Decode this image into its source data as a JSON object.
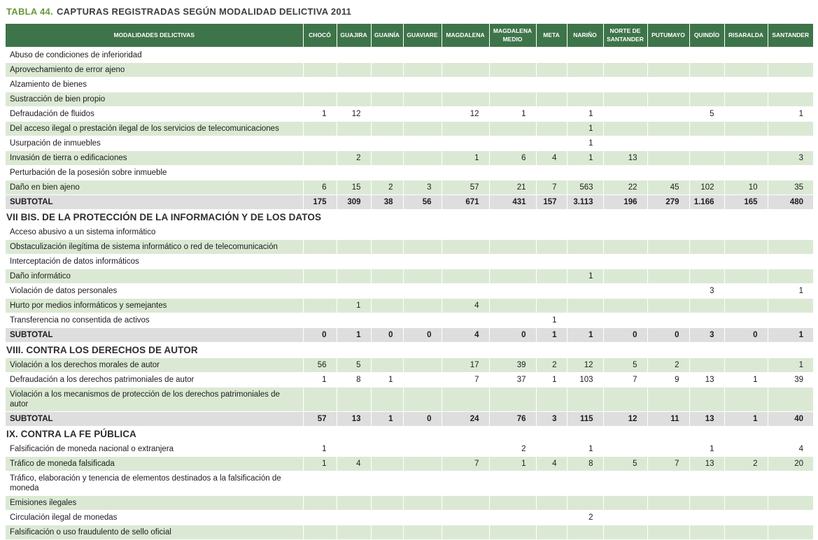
{
  "title": {
    "prefix": "TABLA 44.",
    "text": "CAPTURAS REGISTRADAS SEGÚN MODALIDAD DELICTIVA 2011"
  },
  "colors": {
    "header_bg": "#3e7449",
    "row_alt_bg": "#dbe9d4",
    "subtotal_bg": "#dedede",
    "title_accent": "#69993a"
  },
  "table": {
    "first_column_header": "MODALIDADES DELICTIVAS",
    "columns": [
      "CHOCÓ",
      "GUAJIRA",
      "GUAINÍA",
      "GUAVIARE",
      "MAGDALENA",
      "MAGDALENA MEDIO",
      "META",
      "NARIÑO",
      "NORTE DE SANTANDER",
      "PUTUMAYO",
      "QUINDÍO",
      "RISARALDA",
      "SANTANDER"
    ],
    "sections": [
      {
        "header": null,
        "rows": [
          {
            "label": "Abuso de condiciones de inferioridad",
            "values": [
              "",
              "",
              "",
              "",
              "",
              "",
              "",
              "",
              "",
              "",
              "",
              "",
              ""
            ]
          },
          {
            "label": "Aprovechamiento de error ajeno",
            "values": [
              "",
              "",
              "",
              "",
              "",
              "",
              "",
              "",
              "",
              "",
              "",
              "",
              ""
            ]
          },
          {
            "label": "Alzamiento de bienes",
            "values": [
              "",
              "",
              "",
              "",
              "",
              "",
              "",
              "",
              "",
              "",
              "",
              "",
              ""
            ]
          },
          {
            "label": "Sustracción de bien propio",
            "values": [
              "",
              "",
              "",
              "",
              "",
              "",
              "",
              "",
              "",
              "",
              "",
              "",
              ""
            ]
          },
          {
            "label": "Defraudación de fluidos",
            "values": [
              "1",
              "12",
              "",
              "",
              "12",
              "1",
              "",
              "1",
              "",
              "",
              "5",
              "",
              "1"
            ]
          },
          {
            "label": "Del acceso ilegal o prestación ilegal de los servicios de telecomunicaciones",
            "values": [
              "",
              "",
              "",
              "",
              "",
              "",
              "",
              "1",
              "",
              "",
              "",
              "",
              ""
            ]
          },
          {
            "label": "Usurpación de inmuebles",
            "values": [
              "",
              "",
              "",
              "",
              "",
              "",
              "",
              "1",
              "",
              "",
              "",
              "",
              ""
            ]
          },
          {
            "label": "Invasión de tierra o edificaciones",
            "values": [
              "",
              "2",
              "",
              "",
              "1",
              "6",
              "4",
              "1",
              "13",
              "",
              "",
              "",
              "3"
            ]
          },
          {
            "label": "Perturbación de la posesión sobre inmueble",
            "values": [
              "",
              "",
              "",
              "",
              "",
              "",
              "",
              "",
              "",
              "",
              "",
              "",
              ""
            ]
          },
          {
            "label": "Daño en bien ajeno",
            "values": [
              "6",
              "15",
              "2",
              "3",
              "57",
              "21",
              "7",
              "563",
              "22",
              "45",
              "102",
              "10",
              "35"
            ]
          }
        ],
        "subtotal": {
          "label": "SUBTOTAL",
          "values": [
            "175",
            "309",
            "38",
            "56",
            "671",
            "431",
            "157",
            "3.113",
            "196",
            "279",
            "1.166",
            "165",
            "480"
          ]
        }
      },
      {
        "header": "VII BIS. DE LA PROTECCIÓN DE LA INFORMACIÓN Y DE LOS DATOS",
        "rows": [
          {
            "label": "Acceso abusivo a un sistema informático",
            "values": [
              "",
              "",
              "",
              "",
              "",
              "",
              "",
              "",
              "",
              "",
              "",
              "",
              ""
            ]
          },
          {
            "label": "Obstaculización ilegítima de sistema informático o red de telecomunicación",
            "values": [
              "",
              "",
              "",
              "",
              "",
              "",
              "",
              "",
              "",
              "",
              "",
              "",
              ""
            ]
          },
          {
            "label": "Interceptación de datos informáticos",
            "values": [
              "",
              "",
              "",
              "",
              "",
              "",
              "",
              "",
              "",
              "",
              "",
              "",
              ""
            ]
          },
          {
            "label": "Daño informático",
            "values": [
              "",
              "",
              "",
              "",
              "",
              "",
              "",
              "1",
              "",
              "",
              "",
              "",
              ""
            ]
          },
          {
            "label": "Violación de datos personales",
            "values": [
              "",
              "",
              "",
              "",
              "",
              "",
              "",
              "",
              "",
              "",
              "3",
              "",
              "1"
            ]
          },
          {
            "label": "Hurto por medios informáticos y semejantes",
            "values": [
              "",
              "1",
              "",
              "",
              "4",
              "",
              "",
              "",
              "",
              "",
              "",
              "",
              ""
            ]
          },
          {
            "label": "Transferencia no consentida de activos",
            "values": [
              "",
              "",
              "",
              "",
              "",
              "",
              "1",
              "",
              "",
              "",
              "",
              "",
              ""
            ]
          }
        ],
        "subtotal": {
          "label": "SUBTOTAL",
          "values": [
            "0",
            "1",
            "0",
            "0",
            "4",
            "0",
            "1",
            "1",
            "0",
            "0",
            "3",
            "0",
            "1"
          ]
        }
      },
      {
        "header": "VIII. CONTRA LOS DERECHOS DE AUTOR",
        "rows": [
          {
            "label": "Violación a los derechos morales de autor",
            "values": [
              "56",
              "5",
              "",
              "",
              "17",
              "39",
              "2",
              "12",
              "5",
              "2",
              "",
              "",
              "1"
            ]
          },
          {
            "label": "Defraudación a los derechos patrimoniales de autor",
            "values": [
              "1",
              "8",
              "1",
              "",
              "7",
              "37",
              "1",
              "103",
              "7",
              "9",
              "13",
              "1",
              "39"
            ]
          },
          {
            "label": "Violación a los mecanismos de protección de los derechos patrimoniales de autor",
            "values": [
              "",
              "",
              "",
              "",
              "",
              "",
              "",
              "",
              "",
              "",
              "",
              "",
              ""
            ]
          }
        ],
        "subtotal": {
          "label": "SUBTOTAL",
          "values": [
            "57",
            "13",
            "1",
            "0",
            "24",
            "76",
            "3",
            "115",
            "12",
            "11",
            "13",
            "1",
            "40"
          ]
        }
      },
      {
        "header": "IX. CONTRA LA FE PÚBLICA",
        "rows": [
          {
            "label": "Falsificación de moneda nacional o extranjera",
            "values": [
              "1",
              "",
              "",
              "",
              "",
              "2",
              "",
              "1",
              "",
              "",
              "1",
              "",
              "4"
            ]
          },
          {
            "label": "Tráfico de moneda falsificada",
            "values": [
              "1",
              "4",
              "",
              "",
              "7",
              "1",
              "4",
              "8",
              "5",
              "7",
              "13",
              "2",
              "20"
            ]
          },
          {
            "label": "Tráfico, elaboración y tenencia de elementos destinados a la falsificación de moneda",
            "values": [
              "",
              "",
              "",
              "",
              "",
              "",
              "",
              "",
              "",
              "",
              "",
              "",
              ""
            ]
          },
          {
            "label": "Emisiones ilegales",
            "values": [
              "",
              "",
              "",
              "",
              "",
              "",
              "",
              "",
              "",
              "",
              "",
              "",
              ""
            ]
          },
          {
            "label": "Circulación ilegal de monedas",
            "values": [
              "",
              "",
              "",
              "",
              "",
              "",
              "",
              "2",
              "",
              "",
              "",
              "",
              ""
            ]
          },
          {
            "label": "Falsificación o uso fraudulento de sello oficial",
            "values": [
              "",
              "",
              "",
              "",
              "",
              "",
              "",
              "",
              "",
              "",
              "",
              "",
              ""
            ]
          }
        ],
        "subtotal": null
      }
    ]
  }
}
